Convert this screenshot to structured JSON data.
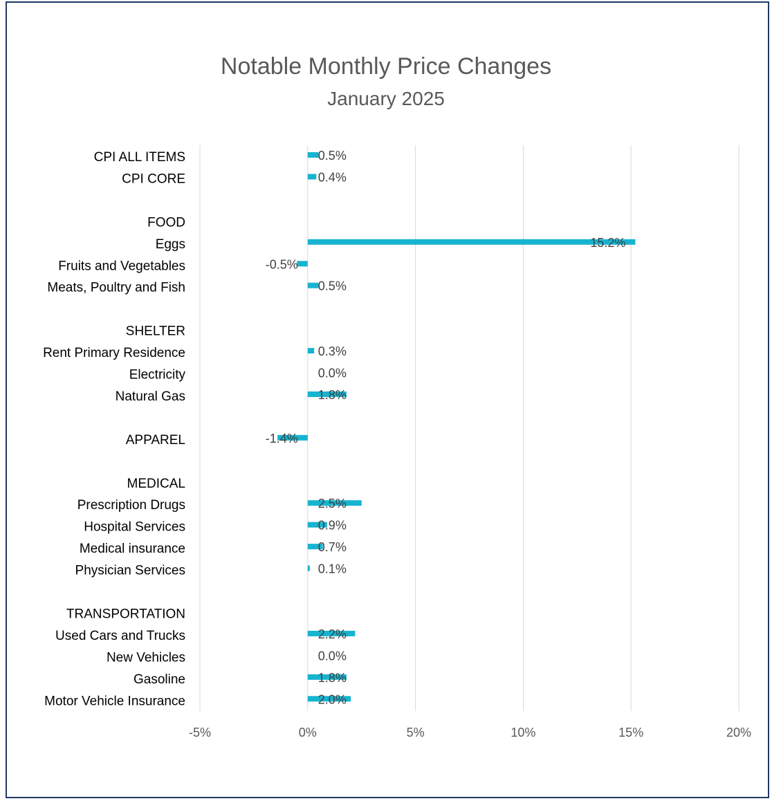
{
  "chart_data": {
    "type": "bar",
    "orientation": "horizontal",
    "title": "Notable Monthly Price Changes",
    "subtitle": "January 2025",
    "categories": [
      "CPI ALL ITEMS",
      "CPI CORE",
      "",
      "FOOD",
      "Eggs",
      "Fruits and Vegetables",
      "Meats, Poultry and Fish",
      "",
      "SHELTER",
      "Rent Primary Residence",
      "Electricity",
      "Natural Gas",
      "",
      "APPAREL",
      "",
      "MEDICAL",
      "Prescription Drugs",
      "Hospital Services",
      "Medical insurance",
      "Physician Services",
      "",
      "TRANSPORTATION",
      "Used Cars and Trucks",
      "New Vehicles",
      "Gasoline",
      "Motor Vehicle Insurance"
    ],
    "values": [
      0.5,
      0.4,
      null,
      null,
      15.2,
      -0.5,
      0.5,
      null,
      null,
      0.3,
      0.0,
      1.8,
      null,
      -1.4,
      null,
      null,
      2.5,
      0.9,
      0.7,
      0.1,
      null,
      null,
      2.2,
      0.0,
      1.8,
      2.0
    ],
    "data_labels": [
      "0.5%",
      "0.4%",
      "",
      "",
      "15.2%",
      "-0.5%",
      "0.5%",
      "",
      "",
      "0.3%",
      "0.0%",
      "1.8%",
      "",
      "-1.4%",
      "",
      "",
      "2.5%",
      "0.9%",
      "0.7%",
      "0.1%",
      "",
      "",
      "2.2%",
      "0.0%",
      "1.8%",
      "2.0%"
    ],
    "xlim": [
      -5,
      20
    ],
    "x_ticks": [
      "-5%",
      "0%",
      "5%",
      "10%",
      "15%",
      "20%"
    ],
    "x_tick_values": [
      -5,
      0,
      5,
      10,
      15,
      20
    ],
    "grid": "vertical",
    "legend": "none",
    "bar_color": "#17b4d0",
    "border_color": "#1f3864"
  }
}
